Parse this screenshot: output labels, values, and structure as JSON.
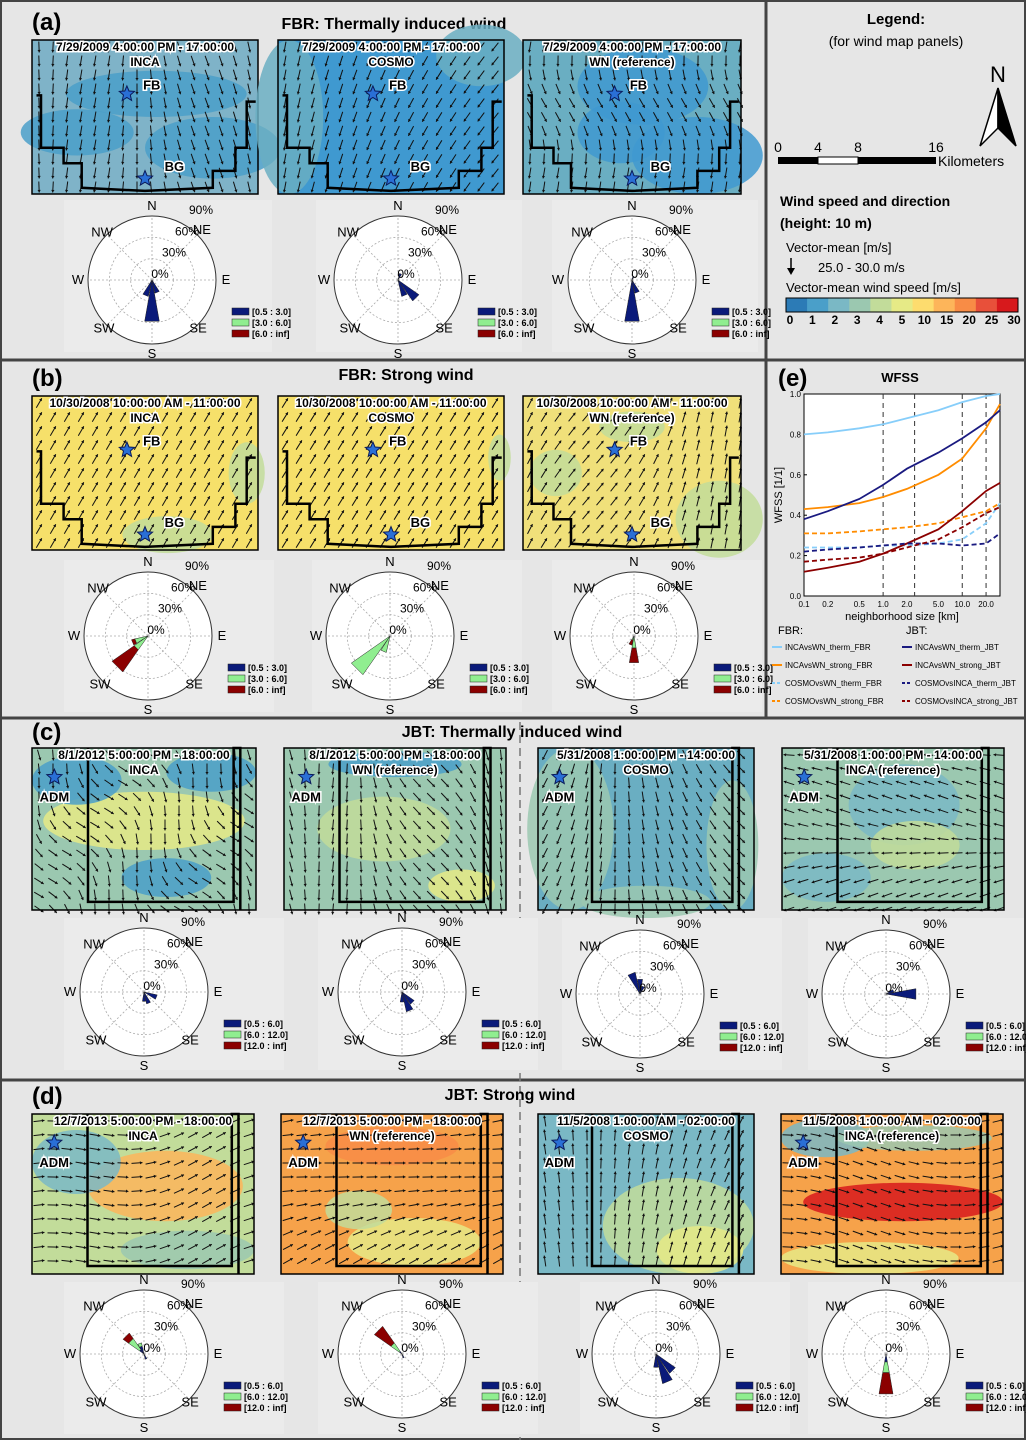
{
  "figure": {
    "panels": {
      "a": {
        "letter": "(a)",
        "title": "FBR: Thermally induced wind",
        "maps": [
          {
            "time": "7/29/2009 4:00:00 PM - 17:00:00",
            "model": "INCA",
            "stations": [
              "FB",
              "BG"
            ]
          },
          {
            "time": "7/29/2009 4:00:00 PM - 17:00:00",
            "model": "COSMO",
            "stations": [
              "FB",
              "BG"
            ]
          },
          {
            "time": "7/29/2009 4:00:00 PM - 17:00:00",
            "model": "WN (reference)",
            "stations": [
              "FB",
              "BG"
            ]
          }
        ]
      },
      "b": {
        "letter": "(b)",
        "title": "FBR: Strong wind",
        "maps": [
          {
            "time": "10/30/2008 10:00:00 AM - 11:00:00",
            "model": "INCA",
            "stations": [
              "FB",
              "BG"
            ]
          },
          {
            "time": "10/30/2008 10:00:00 AM - 11:00:00",
            "model": "COSMO",
            "stations": [
              "FB",
              "BG"
            ]
          },
          {
            "time": "10/30/2008 10:00:00 AM - 11:00:00",
            "model": "WN (reference)",
            "stations": [
              "FB",
              "BG"
            ]
          }
        ]
      },
      "c": {
        "letter": "(c)",
        "title": "JBT: Thermally induced wind",
        "maps": [
          {
            "time": "8/1/2012 5:00:00 PM - 18:00:00",
            "model": "INCA",
            "stations": [
              "ADM"
            ]
          },
          {
            "time": "8/1/2012 5:00:00 PM - 18:00:00",
            "model": "WN (reference)",
            "stations": [
              "ADM"
            ]
          },
          {
            "time": "5/31/2008 1:00:00 PM - 14:00:00",
            "model": "COSMO",
            "stations": [
              "ADM"
            ]
          },
          {
            "time": "5/31/2008 1:00:00 PM - 14:00:00",
            "model": "INCA (reference)",
            "stations": [
              "ADM"
            ]
          }
        ]
      },
      "d": {
        "letter": "(d)",
        "title": "JBT: Strong wind",
        "maps": [
          {
            "time": "12/7/2013 5:00:00 PM - 18:00:00",
            "model": "INCA",
            "stations": [
              "ADM"
            ]
          },
          {
            "time": "12/7/2013 5:00:00 PM - 18:00:00",
            "model": "WN (reference)",
            "stations": [
              "ADM"
            ]
          },
          {
            "time": "11/5/2008 1:00:00 AM - 02:00:00",
            "model": "COSMO",
            "stations": [
              "ADM"
            ]
          },
          {
            "time": "11/5/2008 1:00:00 AM - 02:00:00",
            "model": "INCA (reference)",
            "stations": [
              "ADM"
            ]
          }
        ]
      }
    },
    "compass_labels": {
      "N": "N",
      "NE": "NE",
      "E": "E",
      "SE": "SE",
      "S": "S",
      "SW": "SW",
      "W": "W",
      "NW": "NW"
    },
    "radial_labels": [
      "0%",
      "30%",
      "60%",
      "90%"
    ],
    "rose_legend_fbr": [
      "[0.5 : 3.0]",
      "[3.0 : 6.0]",
      "[6.0 :  inf]"
    ],
    "rose_legend_jbt": [
      "[0.5 : 6.0]",
      "[6.0 : 12.0]",
      "[12.0 :  inf]"
    ],
    "rose_colors": [
      "#0a1a7a",
      "#90ee90",
      "#8b0000"
    ],
    "legend": {
      "title": "Legend:",
      "subtitle": "(for wind map panels)",
      "north": "N",
      "scale_ticks": [
        "0",
        "4",
        "8",
        "16"
      ],
      "scale_unit": "Kilometers",
      "heading1": "Wind speed and direction",
      "heading2": "(height: 10 m)",
      "vector_mean_label": "Vector-mean [m/s]",
      "vector_range": "25.0 - 30.0 m/s",
      "speed_label": "Vector-mean wind speed [m/s]",
      "speed_ticks": [
        "0",
        "1",
        "2",
        "3",
        "4",
        "5",
        "10",
        "15",
        "20",
        "25",
        "30"
      ],
      "speed_colors": [
        "#2c7bb6",
        "#4a9fc9",
        "#7ab8c5",
        "#9bc8b0",
        "#c2dc9a",
        "#e6ea86",
        "#fddc6e",
        "#fdb55a",
        "#f88c46",
        "#e8503a",
        "#d7191c"
      ]
    },
    "panel_e": {
      "letter": "(e)",
      "legend_header_fbr": "FBR:",
      "legend_header_jbt": "JBT:",
      "legend_items": [
        {
          "label": "INCAvsWN_therm_FBR",
          "color": "#87cefa",
          "dash": false
        },
        {
          "label": "INCAvsWN_therm_JBT",
          "color": "#1a1a80",
          "dash": false
        },
        {
          "label": "INCAvsWN_strong_FBR",
          "color": "#ff8c00",
          "dash": false
        },
        {
          "label": "INCAvsWN_strong_JBT",
          "color": "#8b0000",
          "dash": false
        },
        {
          "label": "COSMOvsWN_therm_FBR",
          "color": "#87cefa",
          "dash": true
        },
        {
          "label": "COSMOvsINCA_therm_JBT",
          "color": "#1a1a80",
          "dash": true
        },
        {
          "label": "COSMOvsWN_strong_FBR",
          "color": "#ff8c00",
          "dash": true
        },
        {
          "label": "COSMOvsINCA_strong_JBT",
          "color": "#8b0000",
          "dash": true
        }
      ]
    }
  },
  "chart_data": {
    "type": "line",
    "title": "WFSS",
    "xlabel": "neighborhood size [km]",
    "ylabel": "WFSS [1/1]",
    "x_scale": "log",
    "xlim": [
      0.1,
      30
    ],
    "ylim": [
      0,
      1.0
    ],
    "x_ticks": [
      "0.1",
      "0.2",
      "0.5",
      "1.0",
      "2.0",
      "5.0",
      "10.0",
      "20.0"
    ],
    "y_ticks": [
      "0.0",
      "0.2",
      "0.4",
      "0.6",
      "0.8",
      "1.0"
    ],
    "vertical_dashed_lines_at": [
      1,
      2.5,
      10,
      20
    ],
    "grid": false,
    "series": [
      {
        "name": "INCAvsWN_therm_FBR",
        "x": [
          0.1,
          0.2,
          0.5,
          1,
          2,
          5,
          10,
          20,
          30
        ],
        "y": [
          0.8,
          0.81,
          0.83,
          0.85,
          0.88,
          0.92,
          0.96,
          0.99,
          1.0
        ]
      },
      {
        "name": "INCAvsWN_strong_FBR",
        "x": [
          0.1,
          0.2,
          0.5,
          1,
          2,
          5,
          10,
          20,
          30
        ],
        "y": [
          0.43,
          0.44,
          0.46,
          0.49,
          0.53,
          0.6,
          0.68,
          0.83,
          0.95
        ]
      },
      {
        "name": "COSMOvsWN_therm_FBR",
        "x": [
          0.1,
          0.2,
          0.5,
          1,
          2,
          5,
          10,
          20,
          30
        ],
        "y": [
          0.24,
          0.24,
          0.24,
          0.25,
          0.25,
          0.26,
          0.28,
          0.36,
          0.46
        ]
      },
      {
        "name": "COSMOvsWN_strong_FBR",
        "x": [
          0.1,
          0.2,
          0.5,
          1,
          2,
          5,
          10,
          20,
          30
        ],
        "y": [
          0.31,
          0.31,
          0.32,
          0.33,
          0.34,
          0.36,
          0.39,
          0.42,
          0.46
        ]
      },
      {
        "name": "INCAvsWN_therm_JBT",
        "x": [
          0.1,
          0.2,
          0.5,
          1,
          2,
          5,
          10,
          20,
          30
        ],
        "y": [
          0.38,
          0.42,
          0.48,
          0.55,
          0.63,
          0.71,
          0.78,
          0.86,
          0.92
        ]
      },
      {
        "name": "INCAvsWN_strong_JBT",
        "x": [
          0.1,
          0.2,
          0.5,
          1,
          2,
          5,
          10,
          20,
          30
        ],
        "y": [
          0.12,
          0.14,
          0.17,
          0.21,
          0.26,
          0.33,
          0.42,
          0.52,
          0.56
        ]
      },
      {
        "name": "COSMOvsINCA_therm_JBT",
        "x": [
          0.1,
          0.2,
          0.5,
          1,
          2,
          5,
          10,
          20,
          30
        ],
        "y": [
          0.22,
          0.23,
          0.24,
          0.25,
          0.26,
          0.26,
          0.25,
          0.26,
          0.31
        ]
      },
      {
        "name": "COSMOvsINCA_strong_JBT",
        "x": [
          0.1,
          0.2,
          0.5,
          1,
          2,
          5,
          10,
          20,
          30
        ],
        "y": [
          0.17,
          0.18,
          0.19,
          0.21,
          0.24,
          0.28,
          0.34,
          0.41,
          0.44
        ]
      }
    ],
    "wind_roses": [
      {
        "panel": "a",
        "map": 1,
        "petals": [
          {
            "dir": "S",
            "values": [
              0.62,
              0,
              0
            ]
          },
          {
            "dir": "SSW",
            "values": [
              0.25,
              0,
              0
            ]
          },
          {
            "dir": "SSE",
            "values": [
              0.2,
              0,
              0
            ]
          }
        ]
      },
      {
        "panel": "a",
        "map": 2,
        "petals": [
          {
            "dir": "SE",
            "values": [
              0.38,
              0,
              0
            ]
          },
          {
            "dir": "SSE",
            "values": [
              0.25,
              0,
              0
            ]
          },
          {
            "dir": "NNE",
            "values": [
              0.1,
              0,
              0
            ]
          }
        ]
      },
      {
        "panel": "a",
        "map": 3,
        "petals": [
          {
            "dir": "S",
            "values": [
              0.62,
              0,
              0
            ]
          },
          {
            "dir": "SSE",
            "values": [
              0.2,
              0,
              0
            ]
          },
          {
            "dir": "NNE",
            "values": [
              0.06,
              0,
              0
            ]
          }
        ]
      },
      {
        "panel": "b",
        "map": 1,
        "petals": [
          {
            "dir": "SW",
            "values": [
              0,
              0.25,
              0.4
            ]
          },
          {
            "dir": "WSW",
            "values": [
              0,
              0.2,
              0.05
            ]
          }
        ]
      },
      {
        "panel": "b",
        "map": 2,
        "petals": [
          {
            "dir": "SW",
            "values": [
              0,
              0.7,
              0
            ]
          },
          {
            "dir": "SSW",
            "values": [
              0,
              0.25,
              0
            ]
          }
        ]
      },
      {
        "panel": "b",
        "map": 3,
        "petals": [
          {
            "dir": "S",
            "values": [
              0,
              0.18,
              0.22
            ]
          },
          {
            "dir": "SSW",
            "values": [
              0,
              0.06,
              0.08
            ]
          }
        ]
      },
      {
        "panel": "c",
        "map": 1,
        "petals": [
          {
            "dir": "ESE",
            "values": [
              0.2,
              0,
              0
            ]
          },
          {
            "dir": "SSE",
            "values": [
              0.18,
              0,
              0
            ]
          },
          {
            "dir": "S",
            "values": [
              0.14,
              0,
              0
            ]
          }
        ]
      },
      {
        "panel": "c",
        "map": 2,
        "petals": [
          {
            "dir": "SSE",
            "values": [
              0.3,
              0,
              0
            ]
          },
          {
            "dir": "SE",
            "values": [
              0.22,
              0,
              0
            ]
          },
          {
            "dir": "S",
            "values": [
              0.15,
              0,
              0
            ]
          }
        ]
      },
      {
        "panel": "c",
        "map": 3,
        "petals": [
          {
            "dir": "NNW",
            "values": [
              0.33,
              0,
              0
            ]
          },
          {
            "dir": "N",
            "values": [
              0.22,
              0,
              0
            ]
          },
          {
            "dir": "NNE",
            "values": [
              0.12,
              0,
              0
            ]
          }
        ]
      },
      {
        "panel": "c",
        "map": 4,
        "petals": [
          {
            "dir": "E",
            "values": [
              0.45,
              0,
              0
            ]
          },
          {
            "dir": "ENE",
            "values": [
              0.12,
              0,
              0
            ]
          }
        ]
      },
      {
        "panel": "d",
        "map": 1,
        "petals": [
          {
            "dir": "NW",
            "values": [
              0.08,
              0.2,
              0.1
            ]
          },
          {
            "dir": "NNW",
            "values": [
              0.12,
              0.05,
              0
            ]
          },
          {
            "dir": "SSE",
            "values": [
              0.08,
              0,
              0
            ]
          }
        ]
      },
      {
        "panel": "d",
        "map": 2,
        "petals": [
          {
            "dir": "NW",
            "values": [
              0.05,
              0.15,
              0.3
            ]
          },
          {
            "dir": "SSE",
            "values": [
              0.06,
              0,
              0
            ]
          }
        ]
      },
      {
        "panel": "d",
        "map": 3,
        "petals": [
          {
            "dir": "SSE",
            "values": [
              0.45,
              0,
              0
            ]
          },
          {
            "dir": "SE",
            "values": [
              0.35,
              0,
              0
            ]
          },
          {
            "dir": "S",
            "values": [
              0.2,
              0,
              0
            ]
          }
        ]
      },
      {
        "panel": "d",
        "map": 4,
        "petals": [
          {
            "dir": "S",
            "values": [
              0.12,
              0.16,
              0.32
            ]
          }
        ]
      }
    ]
  }
}
